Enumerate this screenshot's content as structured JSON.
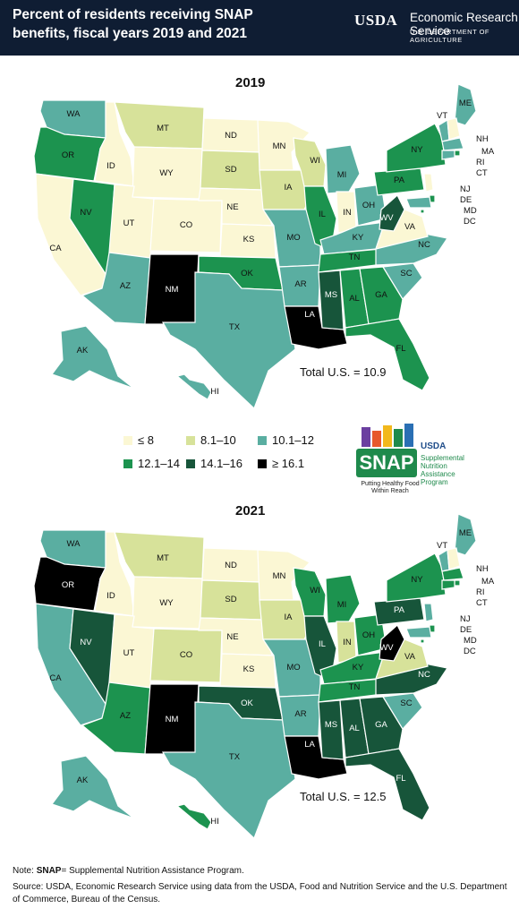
{
  "header": {
    "title": "Percent of residents receiving SNAP benefits, fiscal years 2019 and 2021",
    "usda": "USDA",
    "agency": "Economic Research Service",
    "department": "U.S. DEPARTMENT OF AGRICULTURE"
  },
  "colors": {
    "c1": "#fbf7d4",
    "c2": "#d7e29a",
    "c3": "#5aaea1",
    "c4": "#1c934f",
    "c5": "#17553a",
    "c6": "#000000",
    "header_bg": "#0f1d33"
  },
  "legend": {
    "bins": [
      {
        "label": "≤ 8",
        "color": "#fbf7d4"
      },
      {
        "label": "8.1–10",
        "color": "#d7e29a"
      },
      {
        "label": "10.1–12",
        "color": "#5aaea1"
      },
      {
        "label": "12.1–14",
        "color": "#1c934f"
      },
      {
        "label": "14.1–16",
        "color": "#17553a"
      },
      {
        "label": "≥ 16.1",
        "color": "#000000"
      }
    ]
  },
  "snap_logo": {
    "word": "SNAP",
    "agency": "USDA",
    "full_name": "Supplemental Nutrition Assistance Program",
    "tagline": "Putting Healthy Food Within Reach"
  },
  "maps": [
    {
      "year": "2019",
      "total": "Total U.S. = 10.9",
      "states": {
        "WA": 3,
        "OR": 4,
        "CA": 1,
        "NV": 4,
        "ID": 1,
        "MT": 2,
        "WY": 1,
        "UT": 1,
        "CO": 1,
        "AZ": 3,
        "NM": 6,
        "ND": 1,
        "SD": 2,
        "NE": 1,
        "KS": 1,
        "OK": 4,
        "TX": 3,
        "MN": 1,
        "IA": 2,
        "MO": 3,
        "AR": 3,
        "LA": 6,
        "WI": 2,
        "IL": 4,
        "MI": 3,
        "IN": 1,
        "OH": 3,
        "KY": 3,
        "TN": 4,
        "MS": 5,
        "AL": 4,
        "GA": 4,
        "FL": 4,
        "SC": 3,
        "NC": 3,
        "VA": 1,
        "WV": 5,
        "PA": 4,
        "NY": 4,
        "ME": 3,
        "VT": 3,
        "NH": 1,
        "MA": 3,
        "RI": 4,
        "CT": 3,
        "NJ": 1,
        "DE": 4,
        "MD": 3,
        "DC": 4,
        "AK": 3,
        "HI": 3
      }
    },
    {
      "year": "2021",
      "total": "Total U.S. = 12.5",
      "states": {
        "WA": 3,
        "OR": 6,
        "CA": 3,
        "NV": 5,
        "ID": 1,
        "MT": 2,
        "WY": 1,
        "UT": 1,
        "CO": 2,
        "AZ": 4,
        "NM": 6,
        "ND": 1,
        "SD": 2,
        "NE": 1,
        "KS": 1,
        "OK": 5,
        "TX": 3,
        "MN": 1,
        "IA": 2,
        "MO": 3,
        "AR": 3,
        "LA": 6,
        "WI": 4,
        "IL": 5,
        "MI": 4,
        "IN": 2,
        "OH": 4,
        "KY": 4,
        "TN": 4,
        "MS": 5,
        "AL": 5,
        "GA": 5,
        "FL": 5,
        "SC": 3,
        "NC": 5,
        "VA": 2,
        "WV": 6,
        "PA": 5,
        "NY": 4,
        "ME": 3,
        "VT": 3,
        "NH": 1,
        "MA": 4,
        "RI": 4,
        "CT": 4,
        "NJ": 3,
        "DE": 4,
        "MD": 3,
        "DC": 4,
        "AK": 3,
        "HI": 4
      }
    }
  ],
  "notes": {
    "note_prefix": "Note: ",
    "note_bold": "SNAP",
    "note_rest": "= Supplemental Nutrition Assistance Program.",
    "source": "Source: USDA, Economic Research Service using data from the USDA, Food and Nutrition Service and the U.S. Department of Commerce, Bureau of the Census."
  }
}
